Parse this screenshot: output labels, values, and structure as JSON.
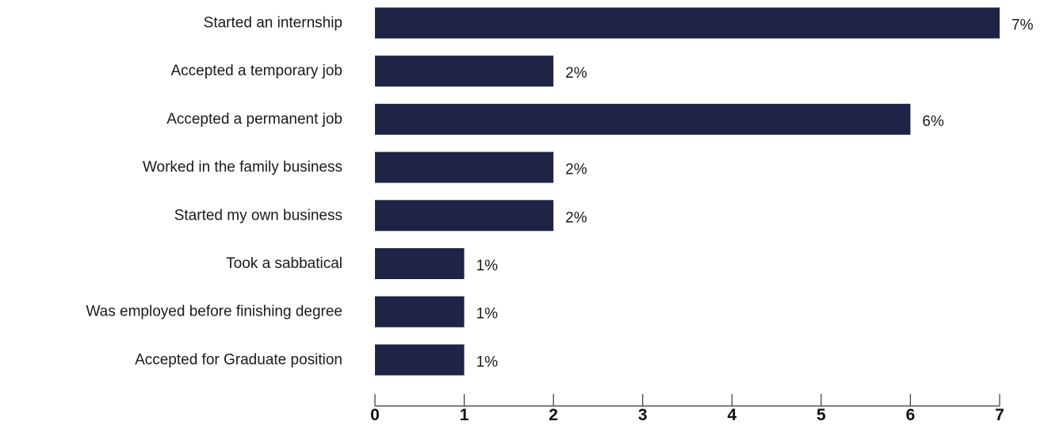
{
  "chart_data": {
    "type": "bar",
    "orientation": "horizontal",
    "title": "",
    "xlabel": "",
    "ylabel": "",
    "categories": [
      "Started an internship",
      "Accepted a temporary job",
      "Accepted a permanent job",
      "Worked in the family business",
      "Started my own business",
      "Took a sabbatical",
      "Was employed before finishing degree",
      "Accepted for Graduate position"
    ],
    "values": [
      7,
      2,
      6,
      2,
      2,
      1,
      1,
      1
    ],
    "value_labels": [
      "7%",
      "2%",
      "6%",
      "2%",
      "2%",
      "1%",
      "1%",
      "1%"
    ],
    "xlim": [
      0,
      7
    ],
    "xticks": [
      "0",
      "1",
      "2",
      "3",
      "4",
      "5",
      "6",
      "7"
    ],
    "grid": false,
    "legend": "none",
    "colors": {
      "bar": "#1f2345",
      "axis": "#333333",
      "text": "#1a1a1a"
    }
  }
}
